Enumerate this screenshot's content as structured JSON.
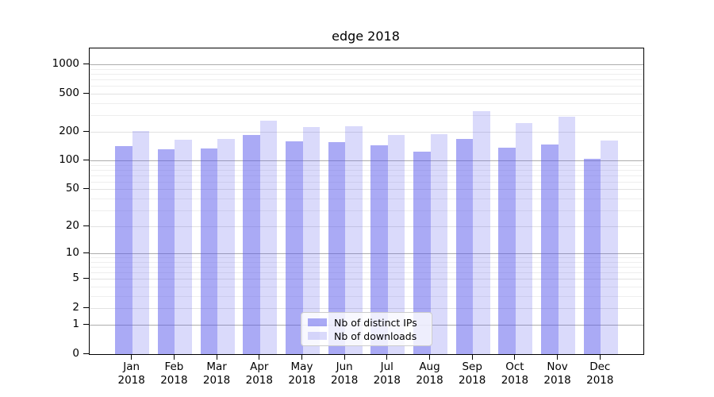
{
  "figure": {
    "title": "edge 2018",
    "background": "#ffffff",
    "frame_color": "#000000"
  },
  "chart_data": {
    "type": "bar",
    "title": "edge 2018",
    "categories": [
      "Jan",
      "Feb",
      "Mar",
      "Apr",
      "May",
      "Jun",
      "Jul",
      "Aug",
      "Sep",
      "Oct",
      "Nov",
      "Dec"
    ],
    "category_year": "2018",
    "series": [
      {
        "name": "Nb of distinct IPs",
        "color": "rgba(85,85,235,0.5)",
        "solid_hex": "#aaaaf4",
        "values": [
          142,
          131,
          135,
          185,
          158,
          156,
          145,
          125,
          170,
          137,
          148,
          104
        ]
      },
      {
        "name": "Nb of downloads",
        "color": "rgba(85,85,235,0.22)",
        "solid_hex": "#d9d9f9",
        "values": [
          204,
          165,
          170,
          260,
          225,
          230,
          185,
          190,
          330,
          245,
          285,
          162
        ]
      }
    ],
    "xlabel": "",
    "ylabel": "",
    "yscale": "log1p",
    "yticks": [
      0,
      1,
      2,
      5,
      10,
      20,
      50,
      100,
      200,
      500,
      1000
    ],
    "ylim": [
      0,
      1460
    ],
    "grid": "horizontal, major (powers of 10) darker + minor lighter",
    "legend_position": "inside axes, bottom center-left",
    "gridline_colors": {
      "major": "#adadad",
      "mid": "#e2e2e2",
      "minor": "#eeeeee"
    }
  }
}
